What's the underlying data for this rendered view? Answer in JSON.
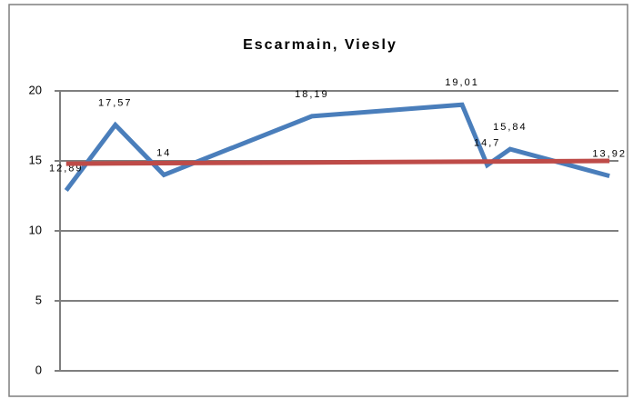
{
  "chart_data": {
    "type": "line",
    "title": "Escarmain, Viesly",
    "x": [
      1.1,
      9.9,
      18.6,
      45.1,
      72.0,
      76.5,
      80.6,
      98.4
    ],
    "xlim": [
      0,
      100
    ],
    "series": [
      {
        "name": null,
        "color": "#4a7ebb",
        "values": [
          12.89,
          17.57,
          14,
          18.19,
          19.01,
          14.7,
          15.84,
          13.92
        ],
        "value_labels": [
          "12,89",
          "17,57",
          "14",
          "18,19",
          "19,01",
          "14,7",
          "15,84",
          "13,92"
        ]
      },
      {
        "name": null,
        "color": "#be4b48",
        "values": [
          14.8,
          14.82,
          14.84,
          14.89,
          14.94,
          14.95,
          14.96,
          15.0
        ]
      }
    ],
    "ylim": [
      0,
      20
    ],
    "yticks": [
      0,
      5,
      10,
      15,
      20
    ],
    "grid": true
  }
}
